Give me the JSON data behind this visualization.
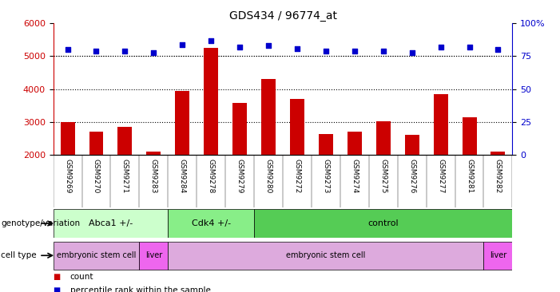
{
  "title": "GDS434 / 96774_at",
  "samples": [
    "GSM9269",
    "GSM9270",
    "GSM9271",
    "GSM9283",
    "GSM9284",
    "GSM9278",
    "GSM9279",
    "GSM9280",
    "GSM9272",
    "GSM9273",
    "GSM9274",
    "GSM9275",
    "GSM9276",
    "GSM9277",
    "GSM9281",
    "GSM9282"
  ],
  "counts": [
    3000,
    2700,
    2850,
    2100,
    3950,
    5250,
    3580,
    4300,
    3700,
    2620,
    2700,
    3020,
    2600,
    3850,
    3150,
    2100
  ],
  "percentiles": [
    80,
    79,
    79,
    78,
    84,
    87,
    82,
    83,
    81,
    79,
    79,
    79,
    78,
    82,
    82,
    80
  ],
  "bar_color": "#cc0000",
  "dot_color": "#0000cc",
  "ylim_left": [
    2000,
    6000
  ],
  "ylim_right": [
    0,
    100
  ],
  "yticks_left": [
    2000,
    3000,
    4000,
    5000,
    6000
  ],
  "yticks_right": [
    0,
    25,
    50,
    75,
    100
  ],
  "grid_values": [
    3000,
    4000,
    5000
  ],
  "genotype_groups": [
    {
      "label": "Abca1 +/-",
      "start": 0,
      "end": 4,
      "color": "#ccffcc"
    },
    {
      "label": "Cdk4 +/-",
      "start": 4,
      "end": 7,
      "color": "#88ee88"
    },
    {
      "label": "control",
      "start": 7,
      "end": 16,
      "color": "#55cc55"
    }
  ],
  "celltype_groups": [
    {
      "label": "embryonic stem cell",
      "start": 0,
      "end": 3,
      "color": "#ddaadd"
    },
    {
      "label": "liver",
      "start": 3,
      "end": 4,
      "color": "#ee66ee"
    },
    {
      "label": "embryonic stem cell",
      "start": 4,
      "end": 15,
      "color": "#ddaadd"
    },
    {
      "label": "liver",
      "start": 15,
      "end": 16,
      "color": "#ee66ee"
    }
  ],
  "legend_count_label": "count",
  "legend_pct_label": "percentile rank within the sample",
  "genotype_label": "genotype/variation",
  "celltype_label": "cell type",
  "xlabel_bg_color": "#cccccc",
  "plot_bg_color": "#ffffff",
  "fig_bg_color": "#ffffff"
}
